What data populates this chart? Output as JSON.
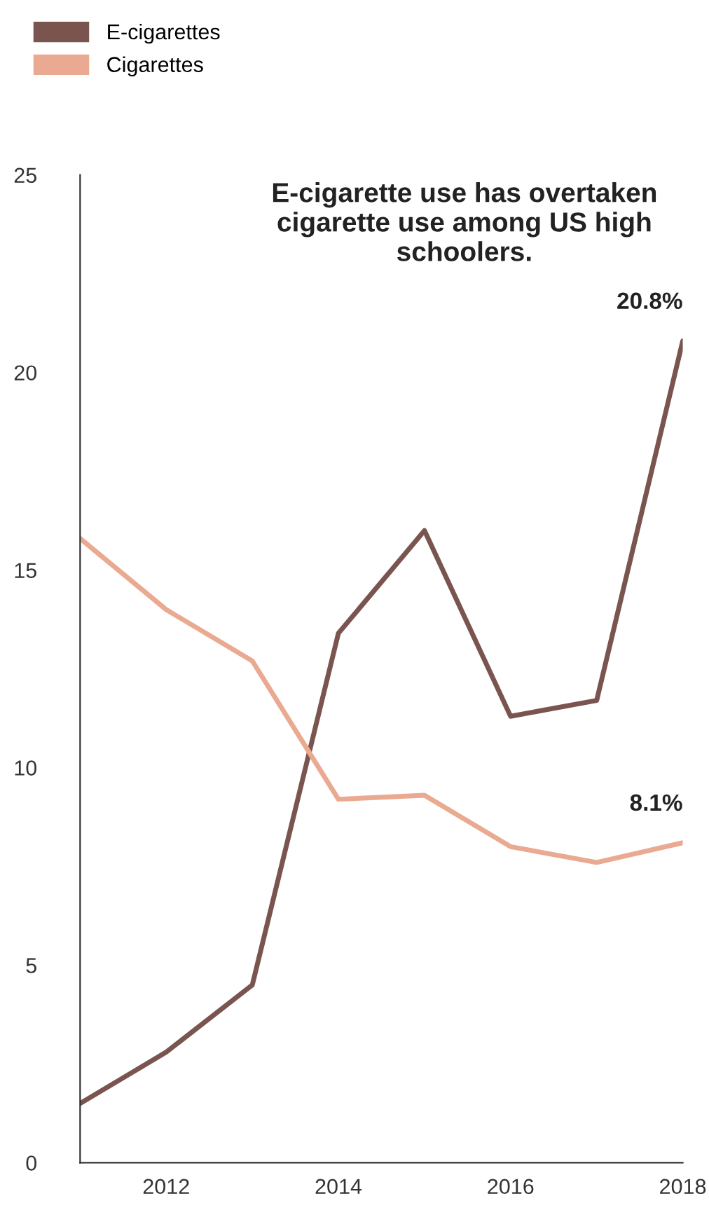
{
  "chart_data": {
    "type": "line",
    "title": "E-cigarette use has overtaken cigarette use among US high schoolers.",
    "x": [
      2011,
      2012,
      2013,
      2014,
      2015,
      2016,
      2017,
      2018
    ],
    "series": [
      {
        "name": "E-cigarettes",
        "color": "#7a5550",
        "values": [
          1.5,
          2.8,
          4.5,
          13.4,
          16.0,
          11.3,
          11.7,
          20.8
        ],
        "value_labels": [
          null,
          null,
          null,
          null,
          null,
          null,
          null,
          "20.8%"
        ]
      },
      {
        "name": "Cigarettes",
        "color": "#eaaa92",
        "values": [
          15.8,
          14.0,
          12.7,
          9.2,
          9.3,
          8.0,
          7.6,
          8.1
        ],
        "value_labels": [
          null,
          null,
          null,
          null,
          null,
          null,
          null,
          "8.1%"
        ]
      }
    ],
    "xlim": [
      2011,
      2018
    ],
    "xticks": [
      2012,
      2014,
      2016,
      2018
    ],
    "ylim": [
      0,
      25
    ],
    "yticks": [
      0,
      5,
      10,
      15,
      20,
      25
    ],
    "grid": false,
    "legend": "top left",
    "marker": "none",
    "line_style": "solid"
  }
}
